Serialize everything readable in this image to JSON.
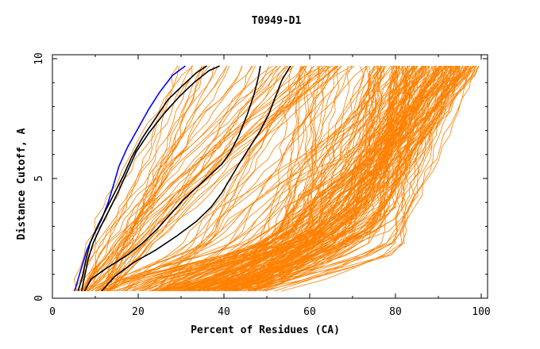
{
  "chart_data": {
    "type": "line",
    "title": "T0949-D1",
    "xlabel": "Percent of Residues (CA)",
    "ylabel": "Distance Cutoff, A",
    "xlim": [
      0,
      100
    ],
    "ylim": [
      0,
      10
    ],
    "x_ticks": [
      "0",
      "20",
      "40",
      "60",
      "80",
      "100"
    ],
    "y_ticks": [
      "0",
      "5",
      "10"
    ],
    "grid": false,
    "legend": "none",
    "colors": {
      "background_models": "#ff8000",
      "highlight_blue": "#0000ff",
      "highlight_black": "#000000"
    },
    "highlighted_series": [
      {
        "color": "#0000ff",
        "points": [
          [
            5.2,
            0.3
          ],
          [
            6.0,
            0.8
          ],
          [
            7.0,
            1.4
          ],
          [
            8.0,
            2.0
          ],
          [
            9.5,
            2.6
          ],
          [
            11.5,
            3.3
          ],
          [
            13.0,
            4.0
          ],
          [
            14.2,
            4.7
          ],
          [
            15.5,
            5.5
          ],
          [
            17.5,
            6.3
          ],
          [
            20.0,
            7.1
          ],
          [
            22.5,
            7.9
          ],
          [
            25.0,
            8.6
          ],
          [
            28.0,
            9.3
          ],
          [
            31.0,
            9.7
          ]
        ]
      },
      {
        "color": "#000000",
        "points": [
          [
            6.0,
            0.3
          ],
          [
            7.0,
            0.9
          ],
          [
            7.8,
            1.6
          ],
          [
            8.8,
            2.3
          ],
          [
            10.5,
            3.0
          ],
          [
            12.5,
            3.7
          ],
          [
            14.5,
            4.4
          ],
          [
            16.5,
            5.1
          ],
          [
            18.5,
            5.9
          ],
          [
            21.0,
            6.7
          ],
          [
            24.0,
            7.5
          ],
          [
            27.0,
            8.3
          ],
          [
            30.5,
            8.9
          ],
          [
            33.5,
            9.4
          ],
          [
            36.0,
            9.7
          ]
        ]
      },
      {
        "color": "#000000",
        "points": [
          [
            6.8,
            0.3
          ],
          [
            7.5,
            0.9
          ],
          [
            8.3,
            1.6
          ],
          [
            9.5,
            2.3
          ],
          [
            11.3,
            3.0
          ],
          [
            13.3,
            3.7
          ],
          [
            15.5,
            4.5
          ],
          [
            17.5,
            5.3
          ],
          [
            19.5,
            6.1
          ],
          [
            22.5,
            6.9
          ],
          [
            26.0,
            7.7
          ],
          [
            29.5,
            8.4
          ],
          [
            33.0,
            9.0
          ],
          [
            36.5,
            9.5
          ],
          [
            39.0,
            9.7
          ]
        ]
      },
      {
        "color": "#000000",
        "points": [
          [
            7.5,
            0.3
          ],
          [
            9.0,
            0.8
          ],
          [
            13.0,
            1.3
          ],
          [
            17.5,
            1.8
          ],
          [
            21.0,
            2.3
          ],
          [
            24.5,
            2.9
          ],
          [
            27.5,
            3.5
          ],
          [
            30.5,
            4.1
          ],
          [
            33.5,
            4.6
          ],
          [
            36.5,
            5.1
          ],
          [
            39.5,
            5.6
          ],
          [
            41.5,
            6.1
          ],
          [
            43.5,
            6.8
          ],
          [
            45.5,
            7.7
          ],
          [
            47.0,
            8.5
          ],
          [
            48.0,
            9.2
          ],
          [
            48.5,
            9.7
          ]
        ]
      },
      {
        "color": "#000000",
        "points": [
          [
            11.5,
            0.3
          ],
          [
            14.5,
            0.9
          ],
          [
            19.0,
            1.5
          ],
          [
            24.0,
            2.0
          ],
          [
            29.0,
            2.6
          ],
          [
            33.5,
            3.2
          ],
          [
            37.0,
            3.8
          ],
          [
            39.5,
            4.4
          ],
          [
            41.5,
            5.0
          ],
          [
            43.5,
            5.6
          ],
          [
            46.0,
            6.3
          ],
          [
            48.5,
            7.0
          ],
          [
            50.5,
            7.7
          ],
          [
            52.0,
            8.4
          ],
          [
            53.5,
            9.1
          ],
          [
            55.5,
            9.7
          ]
        ]
      }
    ]
  }
}
